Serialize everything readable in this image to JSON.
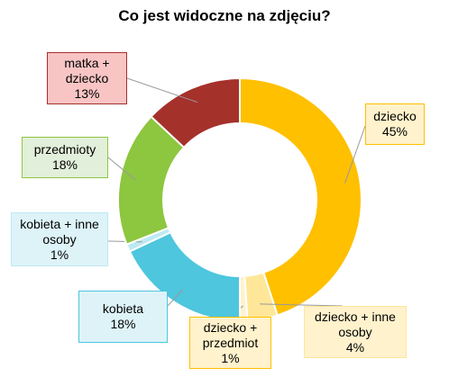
{
  "chart_data": {
    "type": "donut",
    "title": "Co jest widoczne na zdjęciu?",
    "categories": [
      "dziecko",
      "dziecko + inne osoby",
      "dziecko + przedmiot",
      "kobieta",
      "kobieta + inne osoby",
      "przedmioty",
      "matka + dziecko"
    ],
    "values": [
      45,
      4,
      1,
      18,
      1,
      18,
      13
    ],
    "value_labels": [
      "45%",
      "4%",
      "1%",
      "18%",
      "1%",
      "18%",
      "13%"
    ],
    "colors": [
      "#FFC000",
      "#FFE699",
      "#FFF2CC",
      "#4DC6DE",
      "#BDE9F2",
      "#8DC63F",
      "#A5312B"
    ]
  }
}
